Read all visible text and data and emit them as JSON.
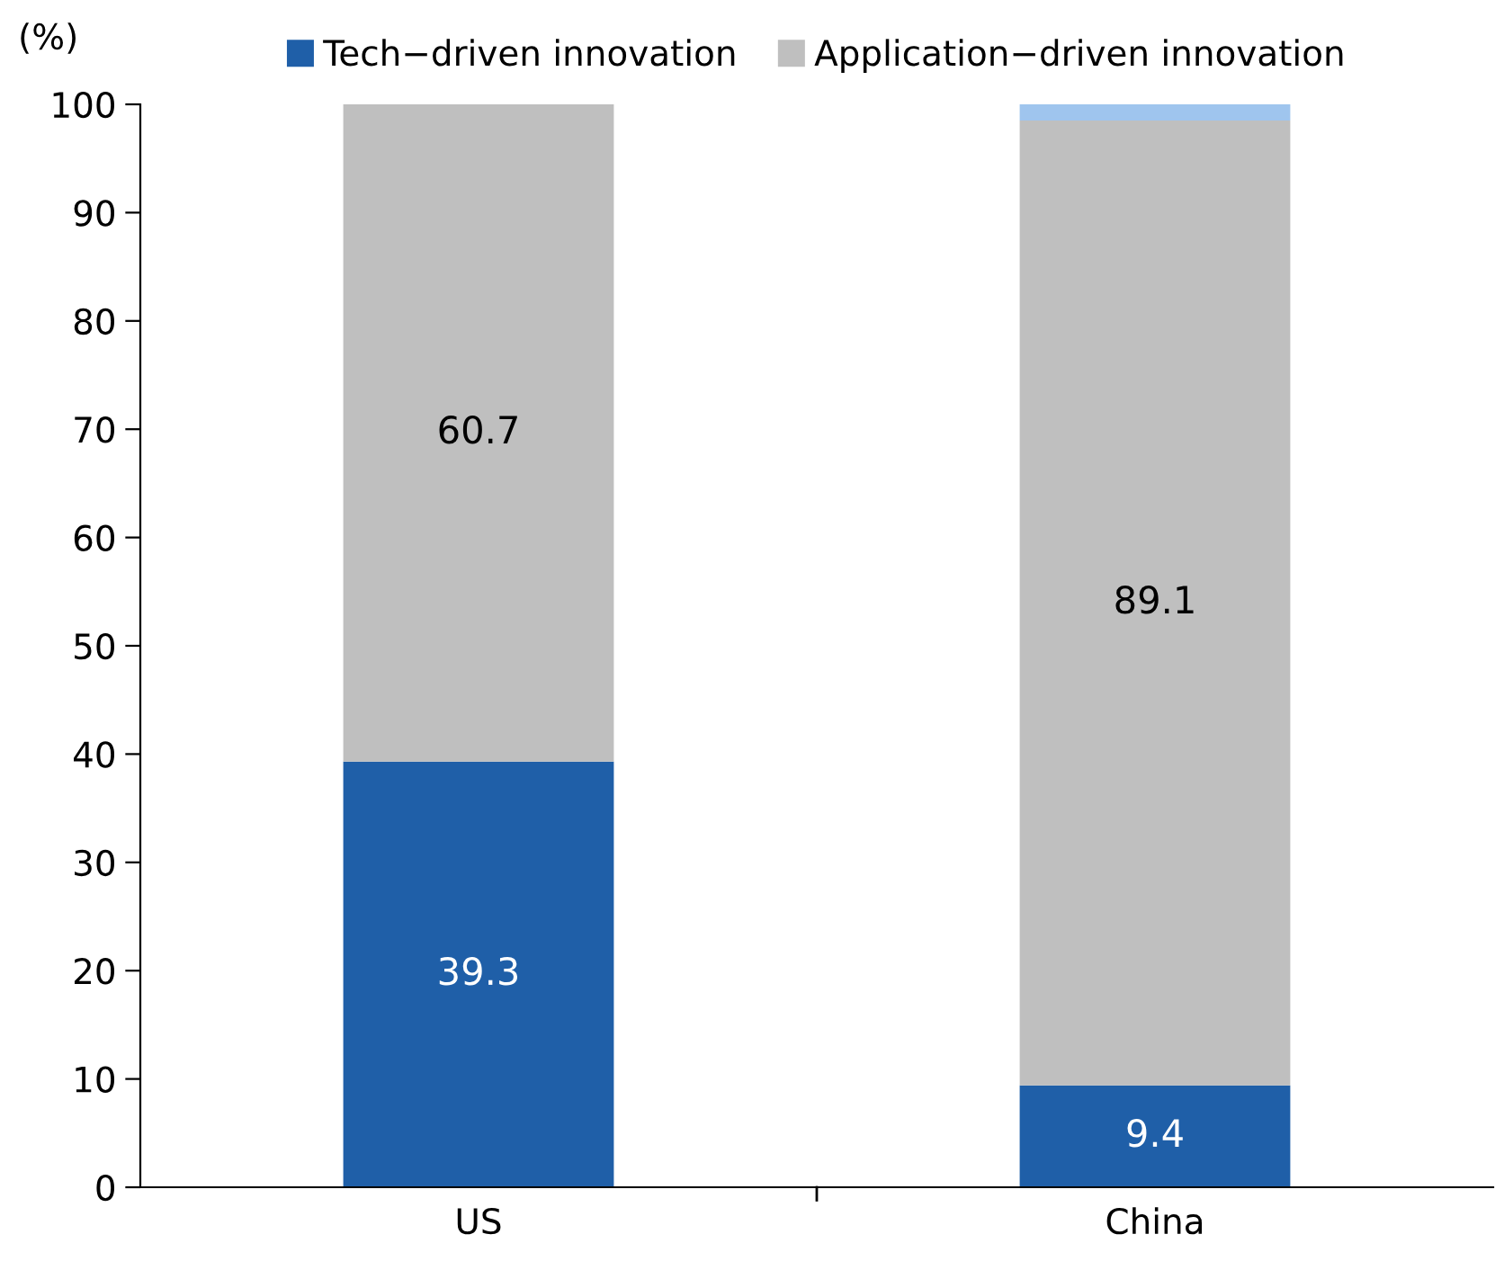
{
  "chart_data": {
    "type": "bar",
    "stacked": true,
    "ylabel": "(%)",
    "categories": [
      "US",
      "China"
    ],
    "series": [
      {
        "name": "Tech−driven innovation",
        "color": "#1f5fa8",
        "values": [
          39.3,
          9.4
        ],
        "value_labels": [
          "39.3",
          "9.4"
        ]
      },
      {
        "name": "Application−driven innovation",
        "color": "#bfbfbf",
        "values": [
          60.7,
          89.1
        ],
        "value_labels": [
          "60.7",
          "89.1"
        ]
      },
      {
        "color": "#9fc5ee",
        "values": [
          null,
          1.5
        ]
      }
    ],
    "ylim": [
      0,
      100
    ],
    "yticks": [
      0,
      10,
      20,
      30,
      40,
      50,
      60,
      70,
      80,
      90,
      100
    ],
    "grid": false,
    "legend": "top"
  }
}
